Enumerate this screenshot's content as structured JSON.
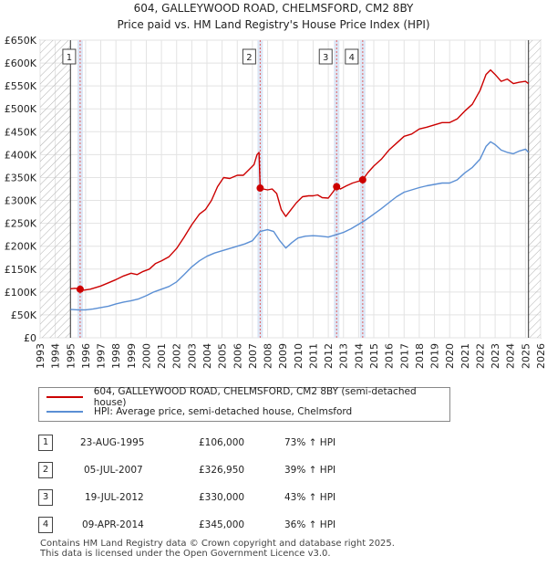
{
  "chart_data": {
    "type": "line",
    "title": "604, GALLEYWOOD ROAD, CHELMSFORD, CM2 8BY",
    "subtitle": "Price paid vs. HM Land Registry's House Price Index (HPI)",
    "xlabel": "",
    "ylabel": "",
    "xlim": [
      1993,
      2026
    ],
    "ylim": [
      0,
      650000
    ],
    "x_ticks": [
      "1993",
      "1994",
      "1995",
      "1996",
      "1997",
      "1998",
      "1999",
      "2000",
      "2001",
      "2002",
      "2003",
      "2004",
      "2005",
      "2006",
      "2007",
      "2008",
      "2009",
      "2010",
      "2011",
      "2012",
      "2013",
      "2014",
      "2015",
      "2016",
      "2017",
      "2018",
      "2019",
      "2020",
      "2021",
      "2022",
      "2023",
      "2024",
      "2025",
      "2026"
    ],
    "y_ticks": [
      {
        "value": 0,
        "label": "£0"
      },
      {
        "value": 50000,
        "label": "£50K"
      },
      {
        "value": 100000,
        "label": "£100K"
      },
      {
        "value": 150000,
        "label": "£150K"
      },
      {
        "value": 200000,
        "label": "£200K"
      },
      {
        "value": 250000,
        "label": "£250K"
      },
      {
        "value": 300000,
        "label": "£300K"
      },
      {
        "value": 350000,
        "label": "£350K"
      },
      {
        "value": 400000,
        "label": "£400K"
      },
      {
        "value": 450000,
        "label": "£450K"
      },
      {
        "value": 500000,
        "label": "£500K"
      },
      {
        "value": 550000,
        "label": "£550K"
      },
      {
        "value": 600000,
        "label": "£600K"
      },
      {
        "value": 650000,
        "label": "£650K"
      }
    ],
    "hatched_ranges": [
      [
        1993,
        1995.0
      ],
      [
        2025.2,
        2026
      ]
    ],
    "colors": {
      "property": "#cc0000",
      "hpi": "#5b8fd4",
      "highlight": "#dde6f5",
      "marker_line": "#e06060",
      "hatch": "#b0b0b0"
    },
    "series": [
      {
        "name": "604, GALLEYWOOD ROAD, CHELMSFORD, CM2 8BY (semi-detached house)",
        "key": "property",
        "points": [
          [
            1995.0,
            107000
          ],
          [
            1995.3,
            108000
          ],
          [
            1995.64,
            106000
          ],
          [
            1995.9,
            104000
          ],
          [
            1996.3,
            106000
          ],
          [
            1996.7,
            110000
          ],
          [
            1997.0,
            113000
          ],
          [
            1997.5,
            120000
          ],
          [
            1998.0,
            127000
          ],
          [
            1998.5,
            135000
          ],
          [
            1999.0,
            141000
          ],
          [
            1999.4,
            138000
          ],
          [
            1999.8,
            145000
          ],
          [
            2000.2,
            150000
          ],
          [
            2000.6,
            162000
          ],
          [
            2001.0,
            168000
          ],
          [
            2001.5,
            177000
          ],
          [
            2002.0,
            195000
          ],
          [
            2002.5,
            220000
          ],
          [
            2003.0,
            247000
          ],
          [
            2003.5,
            270000
          ],
          [
            2003.9,
            280000
          ],
          [
            2004.3,
            300000
          ],
          [
            2004.7,
            330000
          ],
          [
            2005.1,
            350000
          ],
          [
            2005.5,
            348000
          ],
          [
            2006.0,
            355000
          ],
          [
            2006.4,
            355000
          ],
          [
            2006.8,
            368000
          ],
          [
            2007.1,
            378000
          ],
          [
            2007.3,
            400000
          ],
          [
            2007.43,
            405000
          ],
          [
            2007.51,
            326950
          ],
          [
            2007.7,
            325000
          ],
          [
            2008.0,
            323000
          ],
          [
            2008.3,
            325000
          ],
          [
            2008.6,
            315000
          ],
          [
            2008.9,
            280000
          ],
          [
            2009.2,
            265000
          ],
          [
            2009.5,
            278000
          ],
          [
            2009.9,
            295000
          ],
          [
            2010.3,
            308000
          ],
          [
            2010.7,
            310000
          ],
          [
            2011.0,
            310000
          ],
          [
            2011.3,
            312000
          ],
          [
            2011.6,
            306000
          ],
          [
            2012.0,
            305000
          ],
          [
            2012.3,
            318000
          ],
          [
            2012.55,
            330000
          ],
          [
            2012.8,
            325000
          ],
          [
            2013.2,
            332000
          ],
          [
            2013.6,
            338000
          ],
          [
            2014.0,
            342000
          ],
          [
            2014.27,
            345000
          ],
          [
            2014.6,
            360000
          ],
          [
            2015.0,
            375000
          ],
          [
            2015.5,
            390000
          ],
          [
            2016.0,
            410000
          ],
          [
            2016.5,
            425000
          ],
          [
            2017.0,
            440000
          ],
          [
            2017.5,
            445000
          ],
          [
            2018.0,
            456000
          ],
          [
            2018.5,
            460000
          ],
          [
            2019.0,
            465000
          ],
          [
            2019.5,
            470000
          ],
          [
            2020.0,
            470000
          ],
          [
            2020.5,
            478000
          ],
          [
            2021.0,
            495000
          ],
          [
            2021.5,
            510000
          ],
          [
            2022.0,
            540000
          ],
          [
            2022.4,
            575000
          ],
          [
            2022.7,
            585000
          ],
          [
            2023.0,
            575000
          ],
          [
            2023.4,
            560000
          ],
          [
            2023.8,
            565000
          ],
          [
            2024.2,
            555000
          ],
          [
            2024.6,
            558000
          ],
          [
            2025.0,
            560000
          ],
          [
            2025.2,
            555000
          ]
        ]
      },
      {
        "name": "HPI: Average price, semi-detached house, Chelmsford",
        "key": "hpi",
        "points": [
          [
            1995.0,
            62000
          ],
          [
            1995.5,
            61000
          ],
          [
            1996.0,
            61000
          ],
          [
            1996.5,
            63000
          ],
          [
            1997.0,
            66000
          ],
          [
            1997.5,
            69000
          ],
          [
            1998.0,
            74000
          ],
          [
            1998.5,
            78000
          ],
          [
            1999.0,
            81000
          ],
          [
            1999.5,
            85000
          ],
          [
            2000.0,
            92000
          ],
          [
            2000.5,
            100000
          ],
          [
            2001.0,
            106000
          ],
          [
            2001.5,
            112000
          ],
          [
            2002.0,
            122000
          ],
          [
            2002.5,
            138000
          ],
          [
            2003.0,
            155000
          ],
          [
            2003.5,
            168000
          ],
          [
            2004.0,
            178000
          ],
          [
            2004.5,
            185000
          ],
          [
            2005.0,
            190000
          ],
          [
            2005.5,
            195000
          ],
          [
            2006.0,
            200000
          ],
          [
            2006.5,
            205000
          ],
          [
            2007.0,
            212000
          ],
          [
            2007.5,
            232000
          ],
          [
            2008.0,
            236000
          ],
          [
            2008.4,
            232000
          ],
          [
            2008.8,
            212000
          ],
          [
            2009.2,
            196000
          ],
          [
            2009.6,
            208000
          ],
          [
            2010.0,
            218000
          ],
          [
            2010.5,
            222000
          ],
          [
            2011.0,
            223000
          ],
          [
            2011.5,
            222000
          ],
          [
            2012.0,
            220000
          ],
          [
            2012.5,
            225000
          ],
          [
            2013.0,
            230000
          ],
          [
            2013.5,
            238000
          ],
          [
            2014.0,
            248000
          ],
          [
            2014.5,
            258000
          ],
          [
            2015.0,
            270000
          ],
          [
            2015.5,
            282000
          ],
          [
            2016.0,
            295000
          ],
          [
            2016.5,
            308000
          ],
          [
            2017.0,
            318000
          ],
          [
            2017.5,
            323000
          ],
          [
            2018.0,
            328000
          ],
          [
            2018.5,
            332000
          ],
          [
            2019.0,
            335000
          ],
          [
            2019.5,
            338000
          ],
          [
            2020.0,
            338000
          ],
          [
            2020.5,
            345000
          ],
          [
            2021.0,
            360000
          ],
          [
            2021.5,
            372000
          ],
          [
            2022.0,
            390000
          ],
          [
            2022.4,
            418000
          ],
          [
            2022.7,
            428000
          ],
          [
            2023.0,
            422000
          ],
          [
            2023.4,
            410000
          ],
          [
            2023.8,
            405000
          ],
          [
            2024.2,
            402000
          ],
          [
            2024.6,
            408000
          ],
          [
            2025.0,
            412000
          ],
          [
            2025.2,
            405000
          ]
        ]
      }
    ],
    "sales": [
      {
        "num": "1",
        "date": "23-AUG-1995",
        "price": "£106,000",
        "hpi": "73% ↑ HPI",
        "year": 1995.64,
        "value": 106000
      },
      {
        "num": "2",
        "date": "05-JUL-2007",
        "price": "£326,950",
        "hpi": "39% ↑ HPI",
        "year": 2007.51,
        "value": 326950
      },
      {
        "num": "3",
        "date": "19-JUL-2012",
        "price": "£330,000",
        "hpi": "43% ↑ HPI",
        "year": 2012.55,
        "value": 330000
      },
      {
        "num": "4",
        "date": "09-APR-2014",
        "price": "£345,000",
        "hpi": "36% ↑ HPI",
        "year": 2014.27,
        "value": 345000
      }
    ],
    "legend_position": "bottom"
  },
  "footer": {
    "line1": "Contains HM Land Registry data © Crown copyright and database right 2025.",
    "line2": "This data is licensed under the Open Government Licence v3.0."
  }
}
